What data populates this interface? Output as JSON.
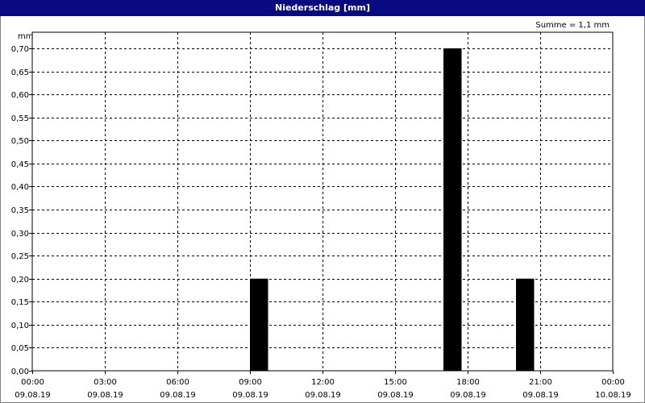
{
  "title": "Niederschlag [mm]",
  "summary": "Summe = 1,1 mm",
  "colors": {
    "titlebar": "#0a0a80",
    "bars": "#000000",
    "grid": "#000000"
  },
  "chart_data": {
    "type": "bar",
    "title": "Niederschlag [mm]",
    "ylabel": "mm",
    "xlabel": "",
    "ylim": [
      0,
      0.7
    ],
    "yticks": [
      "0,00",
      "0,05",
      "0,10",
      "0,15",
      "0,20",
      "0,25",
      "0,30",
      "0,35",
      "0,40",
      "0,45",
      "0,50",
      "0,55",
      "0,60",
      "0,65",
      "0,70"
    ],
    "xlim": [
      "2019-08-09 00:00",
      "2019-08-10 00:00"
    ],
    "xticks": [
      {
        "time": "00:00",
        "date": "09.08.19"
      },
      {
        "time": "03:00",
        "date": "09.08.19"
      },
      {
        "time": "06:00",
        "date": "09.08.19"
      },
      {
        "time": "09:00",
        "date": "09.08.19"
      },
      {
        "time": "12:00",
        "date": "09.08.19"
      },
      {
        "time": "15:00",
        "date": "09.08.19"
      },
      {
        "time": "18:00",
        "date": "09.08.19"
      },
      {
        "time": "21:00",
        "date": "09.08.19"
      },
      {
        "time": "00:00",
        "date": "10.08.19"
      }
    ],
    "bars": [
      {
        "start": "2019-08-09 09:00",
        "end": "2019-08-09 09:45",
        "value": 0.2
      },
      {
        "start": "2019-08-09 17:00",
        "end": "2019-08-09 17:45",
        "value": 0.7
      },
      {
        "start": "2019-08-09 20:00",
        "end": "2019-08-09 20:45",
        "value": 0.2
      }
    ],
    "grid": true,
    "summary": "Summe = 1,1 mm"
  }
}
